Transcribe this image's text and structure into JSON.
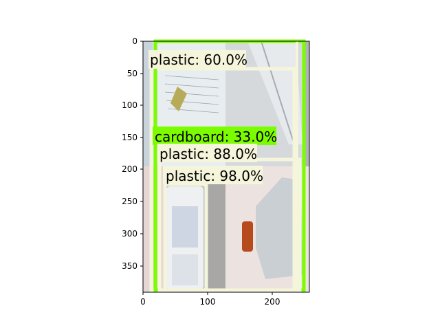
{
  "axes": {
    "x_ticks": [
      "0",
      "100",
      "200"
    ],
    "y_ticks": [
      "0",
      "50",
      "100",
      "150",
      "200",
      "250",
      "300",
      "350"
    ]
  },
  "photo": {
    "tile_top_left": "paper sheet with handwriting and a small yellow card",
    "tile_top_right": "clear plastic sheet",
    "tile_bottom_left": "clear plastic clamshell container",
    "tile_bottom_right": "plastic jug with red cap"
  },
  "detections": [
    {
      "label": "plastic: 60.0%",
      "color": "#f5f5dc",
      "label_bg": "#f5f5dc"
    },
    {
      "label": "cardboard: 33.0%",
      "color": "#7cfc00",
      "label_bg": "#7cfc00"
    },
    {
      "label": "plastic: 88.0%",
      "color": "#f5f5dc",
      "label_bg": "#f5f5dc"
    },
    {
      "label": "plastic: 98.0%",
      "color": "#f5f5dc",
      "label_bg": "#f5f5dc"
    }
  ]
}
